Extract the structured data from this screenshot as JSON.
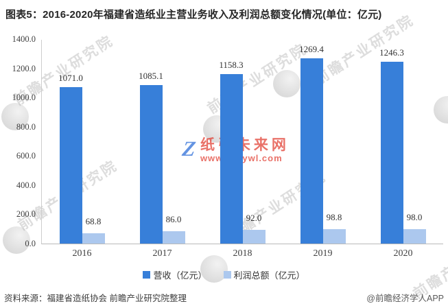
{
  "title": "图表5：2016-2020年福建省造纸业主营业务收入及利润总额变化情况(单位：亿元)",
  "chart_data": {
    "type": "bar",
    "categories": [
      "2016",
      "2017",
      "2018",
      "2019",
      "2020"
    ],
    "series": [
      {
        "name": "营收（亿元）",
        "color": "#377FD9",
        "values": [
          1071.0,
          1085.1,
          1158.3,
          1269.4,
          1246.3
        ]
      },
      {
        "name": "利润总额（亿元）",
        "color": "#ACC8EE",
        "values": [
          68.8,
          86.0,
          92.0,
          98.8,
          98.0
        ]
      }
    ],
    "xlabel": "",
    "ylabel": "",
    "ylim": [
      0,
      1400
    ],
    "yticks": [
      "1400.0",
      "1200.0",
      "1000.0",
      "800.0",
      "600.0",
      "400.0",
      "200.0",
      "0.0"
    ],
    "grid": false,
    "legend_position": "bottom",
    "value_labels": true
  },
  "footer": {
    "source": "资料来源：福建省造纸协会 前瞻产业研究院整理",
    "credit": "@前瞻经济学人APP"
  },
  "watermarks": {
    "brand": "前瞻产业研究院",
    "site_logo": "Z",
    "site_name": "纸引未来网",
    "site_url": "www.51zywl.com"
  }
}
